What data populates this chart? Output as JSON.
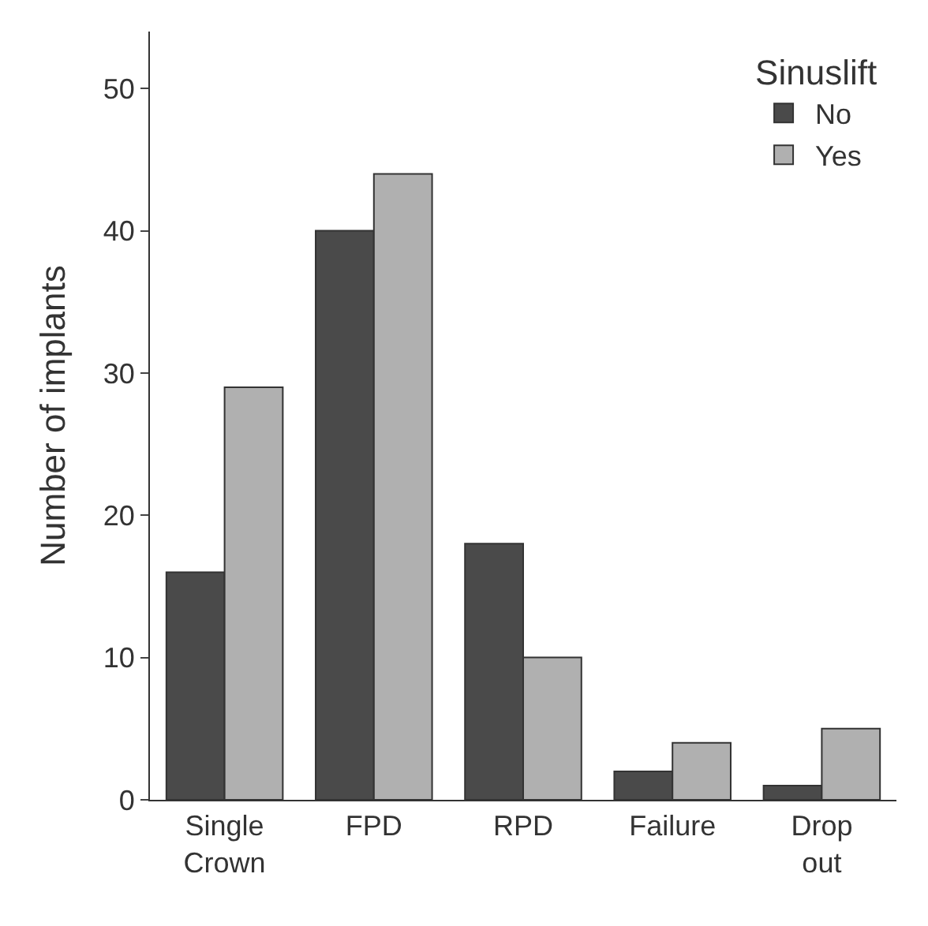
{
  "chart_data": {
    "type": "bar",
    "ylabel": "Number of implants",
    "legend_title": "Sinuslift",
    "categories": [
      "Single Crown",
      "FPD",
      "RPD",
      "Failure",
      "Drop out"
    ],
    "series": [
      {
        "name": "No",
        "color": "#4a4a4a",
        "values": [
          16,
          40,
          18,
          2,
          1
        ]
      },
      {
        "name": "Yes",
        "color": "#b0b0b0",
        "values": [
          29,
          44,
          10,
          4,
          5
        ]
      }
    ],
    "ylim": [
      0,
      54
    ],
    "yticks": [
      0,
      10,
      20,
      30,
      40,
      50
    ],
    "grid": false,
    "legend": "top right"
  }
}
